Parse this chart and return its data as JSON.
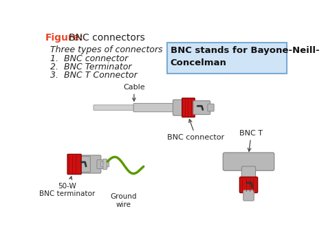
{
  "title_figure": "Figure:",
  "title_text": "  BNC connectors",
  "title_color_figure": "#e8472a",
  "title_color_text": "#222222",
  "bg_color": "#ffffff",
  "list_title": "Three types of connectors",
  "list_items": [
    "1.  BNC connector",
    "2.  BNC Terminator",
    "3.  BNC T Connector"
  ],
  "box_text_line1": "BNC stands for Bayone-Neill-",
  "box_text_line2": "Concelman",
  "box_bg": "#d0e4f7",
  "box_edge": "#7aaad0",
  "label_cable": "Cable",
  "label_bnc_connector": "BNC connector",
  "label_bnc_t": "BNC T",
  "label_50w": "50-W\nBNC terminator",
  "label_ground": "Ground\nwire",
  "cable_color": "#c8c8c8",
  "cable_light": "#e0e0e0",
  "body_color": "#b8b8b8",
  "body_light": "#d4d4d4",
  "ring_color": "#cc1111",
  "ring_dark": "#880000",
  "green_wire_color": "#5a9900",
  "dark_outline": "#888888",
  "text_color": "#222222",
  "text_fontsize": 9,
  "list_fontsize": 9
}
